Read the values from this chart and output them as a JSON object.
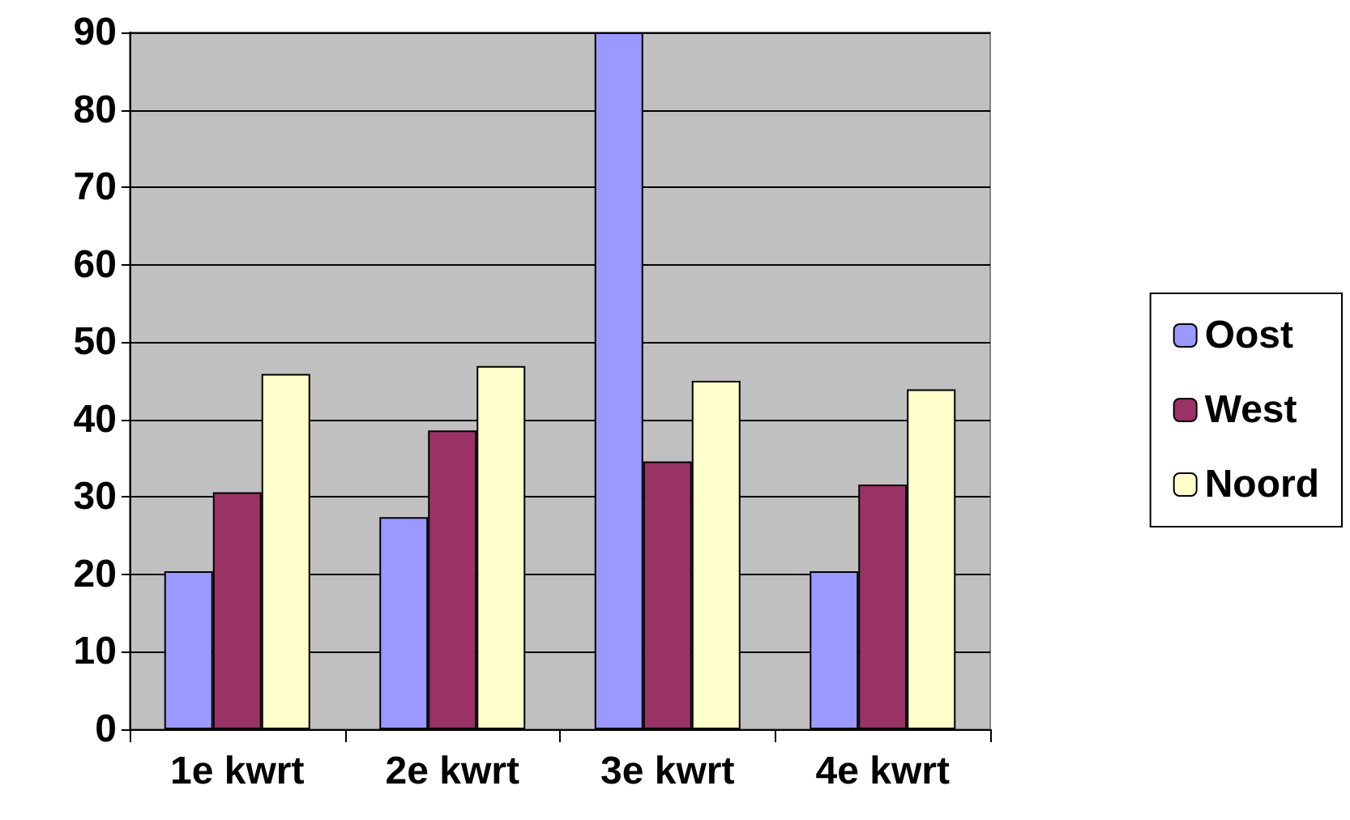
{
  "chart_data": {
    "type": "bar",
    "categories": [
      "1e kwrt",
      "2e kwrt",
      "3e kwrt",
      "4e kwrt"
    ],
    "series": [
      {
        "name": "Oost",
        "color": "#9999ff",
        "values": [
          20.4,
          27.4,
          90,
          20.4
        ]
      },
      {
        "name": "West",
        "color": "#993366",
        "values": [
          30.6,
          38.6,
          34.6,
          31.6
        ]
      },
      {
        "name": "Noord",
        "color": "#ffffcc",
        "values": [
          45.9,
          46.9,
          45,
          43.9
        ]
      }
    ],
    "ylim": [
      0,
      90
    ],
    "yticks": [
      0,
      10,
      20,
      30,
      40,
      50,
      60,
      70,
      80,
      90
    ],
    "grid": "y",
    "legend": "right"
  }
}
